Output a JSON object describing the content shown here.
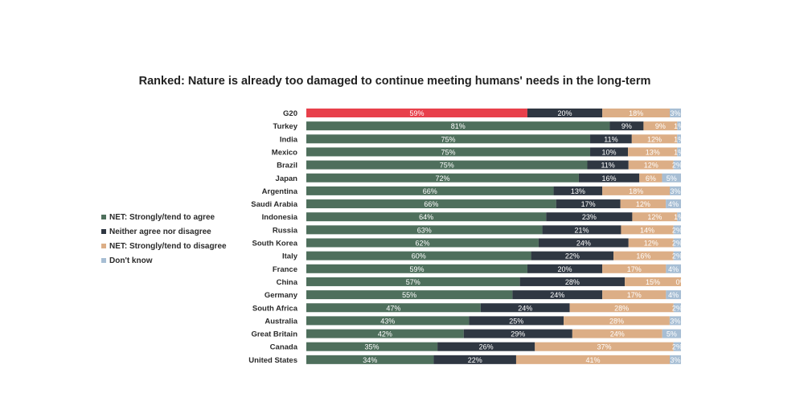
{
  "chart_data": {
    "type": "bar",
    "orientation": "horizontal",
    "stacked": true,
    "title": "Ranked: Nature is already too damaged to continue meeting humans' needs in the long-term",
    "categories": [
      "G20",
      "Turkey",
      "India",
      "Mexico",
      "Brazil",
      "Japan",
      "Argentina",
      "Saudi Arabia",
      "Indonesia",
      "Russia",
      "South Korea",
      "Italy",
      "France",
      "China",
      "Germany",
      "South Africa",
      "Australia",
      "Great Britain",
      "Canada",
      "United States"
    ],
    "series": [
      {
        "name": "NET: Strongly/tend to agree",
        "color": "#4e6f5c",
        "highlight_color": "#e8404b",
        "values": [
          59,
          81,
          75,
          75,
          75,
          72,
          66,
          66,
          64,
          63,
          62,
          60,
          59,
          57,
          55,
          47,
          43,
          42,
          35,
          34
        ]
      },
      {
        "name": "Neither agree nor disagree",
        "color": "#2f3742",
        "values": [
          20,
          9,
          11,
          10,
          11,
          16,
          13,
          17,
          23,
          21,
          24,
          22,
          20,
          28,
          24,
          24,
          25,
          29,
          26,
          22
        ]
      },
      {
        "name": "NET: Strongly/tend to disagree",
        "color": "#dcae86",
        "values": [
          18,
          9,
          12,
          13,
          12,
          6,
          18,
          12,
          12,
          14,
          12,
          16,
          17,
          15,
          17,
          28,
          28,
          24,
          37,
          41
        ]
      },
      {
        "name": "Don't know",
        "color": "#a7bed4",
        "values": [
          3,
          1,
          1,
          1,
          2,
          5,
          3,
          4,
          1,
          2,
          2,
          2,
          4,
          0,
          4,
          2,
          3,
          5,
          2,
          3
        ]
      }
    ],
    "value_suffix": "%",
    "legend_position": "left",
    "xlim": [
      0,
      100
    ]
  }
}
